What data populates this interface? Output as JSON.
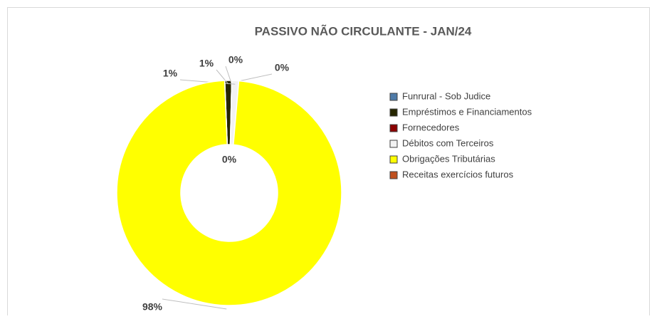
{
  "chart_data": {
    "type": "donut",
    "title": "PASSIVO NÃO CIRCULANTE - JAN/24",
    "categories": [
      "Funrural - Sob Judice",
      "Empréstimos e Financiamentos",
      "Fornecedores",
      "Débitos com Terceiros",
      "Obrigações Tributárias",
      "Receitas exercícios futuros"
    ],
    "values": [
      0,
      1,
      0,
      1,
      98,
      0
    ],
    "value_labels": [
      "0%",
      "1%",
      "0%",
      "1%",
      "98%",
      "0%"
    ],
    "colors": [
      "#4f7ba8",
      "#262600",
      "#8b0000",
      "#f2f2f2",
      "#ffff00",
      "#c0501f"
    ],
    "legend": "right"
  }
}
